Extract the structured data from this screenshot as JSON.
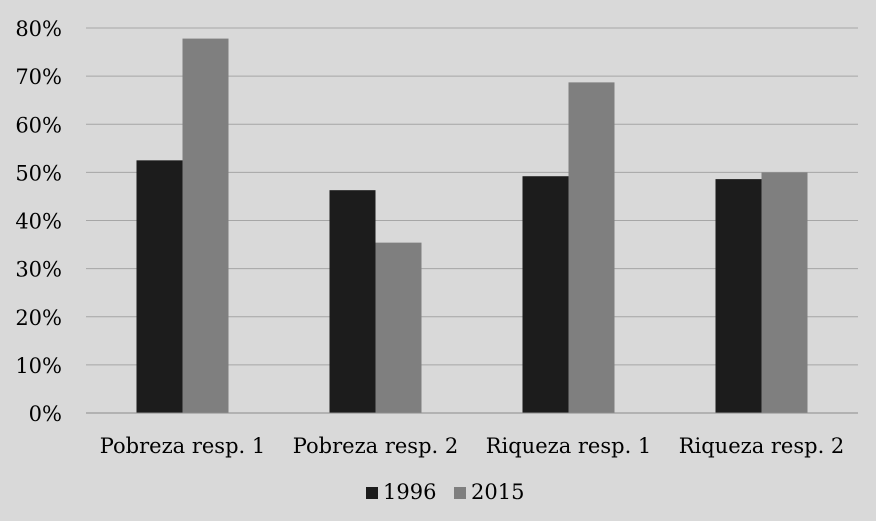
{
  "chart_data": {
    "type": "bar",
    "categories": [
      "Pobreza resp. 1",
      "Pobreza resp. 2",
      "Riqueza resp. 1",
      "Riqueza resp. 2"
    ],
    "series": [
      {
        "name": "1996",
        "values": [
          52.5,
          46.3,
          49.2,
          48.6
        ]
      },
      {
        "name": "2015",
        "values": [
          77.8,
          35.4,
          68.7,
          50.0
        ]
      }
    ],
    "ylim": [
      0,
      80
    ],
    "yticks": [
      "0%",
      "10%",
      "20%",
      "30%",
      "40%",
      "50%",
      "60%",
      "70%",
      "80%"
    ],
    "title": "",
    "xlabel": "",
    "ylabel": "",
    "grid": true,
    "legend_position": "bottom-center",
    "colors": {
      "background": "#d9d9d9",
      "gridline": "#a6a6a6",
      "axis": "#8c8c8c",
      "series": [
        "#1c1c1c",
        "#7f7f7f"
      ]
    }
  }
}
